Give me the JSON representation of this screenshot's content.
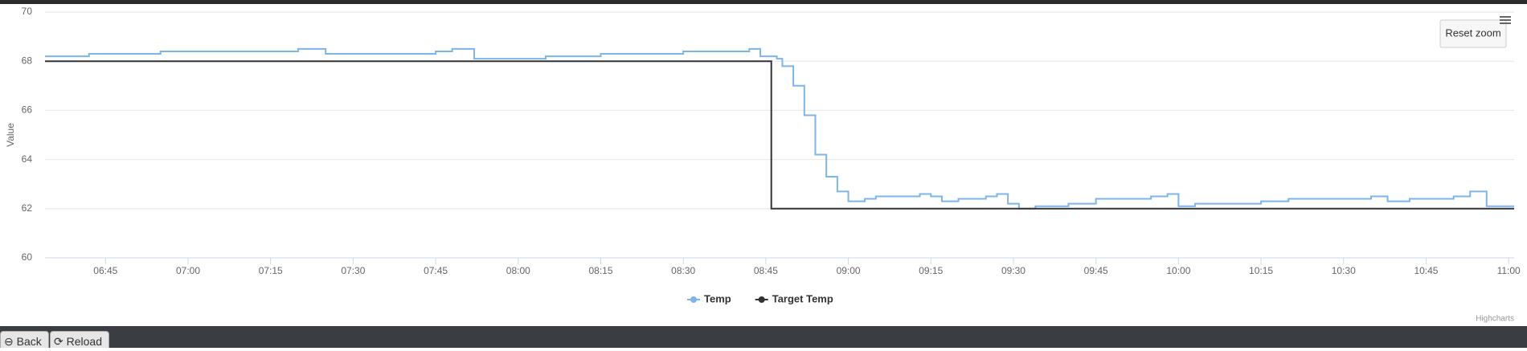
{
  "chart_data": {
    "type": "line",
    "step": true,
    "grid": true,
    "y_label": "Value",
    "reset_zoom": "Reset zoom",
    "credit": "Highcharts",
    "xlim": [
      "06:34",
      "11:01"
    ],
    "xticks": [
      "06:45",
      "07:00",
      "07:15",
      "07:30",
      "07:45",
      "08:00",
      "08:15",
      "08:30",
      "08:45",
      "09:00",
      "09:15",
      "09:30",
      "09:45",
      "10:00",
      "10:15",
      "10:30",
      "10:45",
      "11:00"
    ],
    "ylim": [
      60,
      70
    ],
    "yticks": [
      60,
      62,
      64,
      66,
      68,
      70
    ],
    "series": [
      {
        "name": "Temp",
        "color": "#7cb5ec",
        "x": [
          "06:34",
          "06:40",
          "06:42",
          "06:55",
          "07:10",
          "07:20",
          "07:25",
          "07:35",
          "07:45",
          "07:48",
          "07:52",
          "08:00",
          "08:05",
          "08:15",
          "08:25",
          "08:30",
          "08:40",
          "08:42",
          "08:44",
          "08:46",
          "08:47",
          "08:48",
          "08:50",
          "08:52",
          "08:54",
          "08:56",
          "08:58",
          "09:00",
          "09:03",
          "09:05",
          "09:13",
          "09:15",
          "09:17",
          "09:20",
          "09:25",
          "09:27",
          "09:29",
          "09:31",
          "09:34",
          "09:40",
          "09:45",
          "09:55",
          "09:58",
          "10:00",
          "10:03",
          "10:15",
          "10:20",
          "10:30",
          "10:35",
          "10:38",
          "10:42",
          "10:50",
          "10:53",
          "10:56",
          "11:01"
        ],
        "values": [
          68.2,
          68.2,
          68.3,
          68.4,
          68.4,
          68.5,
          68.3,
          68.3,
          68.4,
          68.5,
          68.1,
          68.1,
          68.2,
          68.3,
          68.3,
          68.4,
          68.4,
          68.5,
          68.2,
          68.2,
          68.1,
          67.8,
          67.0,
          65.8,
          64.2,
          63.3,
          62.7,
          62.3,
          62.4,
          62.5,
          62.6,
          62.5,
          62.3,
          62.4,
          62.5,
          62.6,
          62.2,
          62.0,
          62.1,
          62.2,
          62.4,
          62.5,
          62.6,
          62.1,
          62.2,
          62.3,
          62.4,
          62.4,
          62.5,
          62.3,
          62.4,
          62.5,
          62.7,
          62.1,
          62.1
        ]
      },
      {
        "name": "Target Temp",
        "color": "#333333",
        "x": [
          "06:34",
          "08:46",
          "08:46",
          "11:01"
        ],
        "values": [
          68,
          68,
          62,
          62
        ]
      }
    ]
  },
  "ui": {
    "buttons": [
      "Back",
      "Reload"
    ]
  }
}
